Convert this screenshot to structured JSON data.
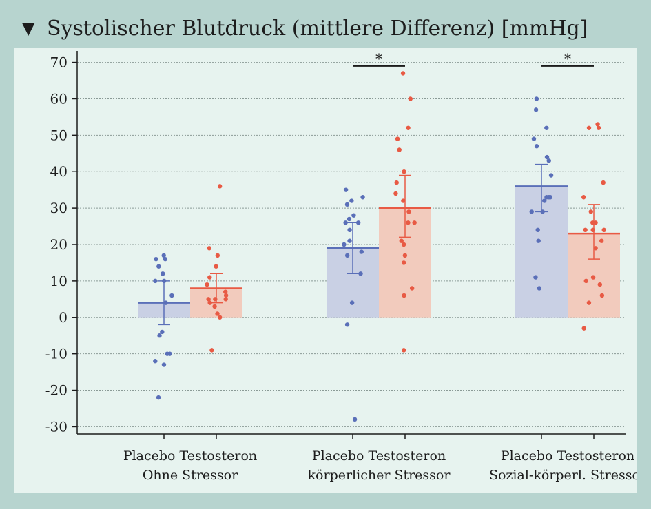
{
  "header": {
    "marker": "▼",
    "title": "Systolischer Blutdruck (mittlere Differenz) [mmHg]"
  },
  "colors": {
    "placebo": "#5a6fb8",
    "placebo_bar": "#c9d0e4",
    "testosteron": "#e85a44",
    "testosteron_bar": "#f2cbbd",
    "background": "#b7d4cf",
    "plot_background": "#e7f3ef"
  },
  "chart_data": {
    "type": "bar",
    "title": "Systolischer Blutdruck (mittlere Differenz) [mmHg]",
    "ylim": [
      -32,
      72
    ],
    "yticks": [
      "70",
      "60",
      "50",
      "40",
      "30",
      "20",
      "10",
      "0",
      "-10",
      "-20",
      "-30"
    ],
    "ytick_values": [
      70,
      60,
      50,
      40,
      30,
      20,
      10,
      0,
      -10,
      -20,
      -30
    ],
    "grid": true,
    "groups": [
      {
        "label_top": "Placebo Testosteron",
        "label_bottom": "Ohne Stressor",
        "significance": "",
        "bars": [
          {
            "name": "Placebo",
            "mean": 4,
            "err_low": -2,
            "err_high": 10,
            "points": [
              17,
              16,
              16,
              14,
              12,
              10,
              10,
              6,
              4,
              -4,
              -5,
              -10,
              -10,
              -12,
              -13,
              -22
            ]
          },
          {
            "name": "Testosteron",
            "mean": 8,
            "err_low": 4,
            "err_high": 12,
            "points": [
              36,
              19,
              17,
              14,
              11,
              9,
              7,
              6,
              5,
              5,
              5,
              4,
              3,
              1,
              0,
              -9
            ]
          }
        ]
      },
      {
        "label_top": "Placebo Testosteron",
        "label_bottom": "körperlicher Stressor",
        "significance": "*",
        "bars": [
          {
            "name": "Placebo",
            "mean": 19,
            "err_low": 12,
            "err_high": 26,
            "points": [
              35,
              33,
              32,
              31,
              28,
              27,
              26,
              26,
              24,
              21,
              20,
              18,
              17,
              12,
              4,
              -2,
              -28
            ]
          },
          {
            "name": "Testosteron",
            "mean": 30,
            "err_low": 22,
            "err_high": 39,
            "points": [
              67,
              60,
              52,
              49,
              46,
              40,
              37,
              34,
              32,
              29,
              26,
              26,
              21,
              20,
              17,
              15,
              8,
              6,
              -9
            ]
          }
        ]
      },
      {
        "label_top": "Placebo Testosteron",
        "label_bottom": "Sozial-körperl. Stressor",
        "significance": "*",
        "bars": [
          {
            "name": "Placebo",
            "mean": 36,
            "err_low": 29,
            "err_high": 42,
            "points": [
              60,
              57,
              52,
              49,
              47,
              44,
              43,
              39,
              33,
              33,
              33,
              32,
              29,
              29,
              24,
              21,
              11,
              8
            ]
          },
          {
            "name": "Testosteron",
            "mean": 23,
            "err_low": 16,
            "err_high": 31,
            "points": [
              53,
              52,
              52,
              37,
              33,
              29,
              26,
              26,
              24,
              24,
              24,
              21,
              19,
              11,
              10,
              9,
              6,
              4,
              -3
            ]
          }
        ]
      }
    ]
  }
}
